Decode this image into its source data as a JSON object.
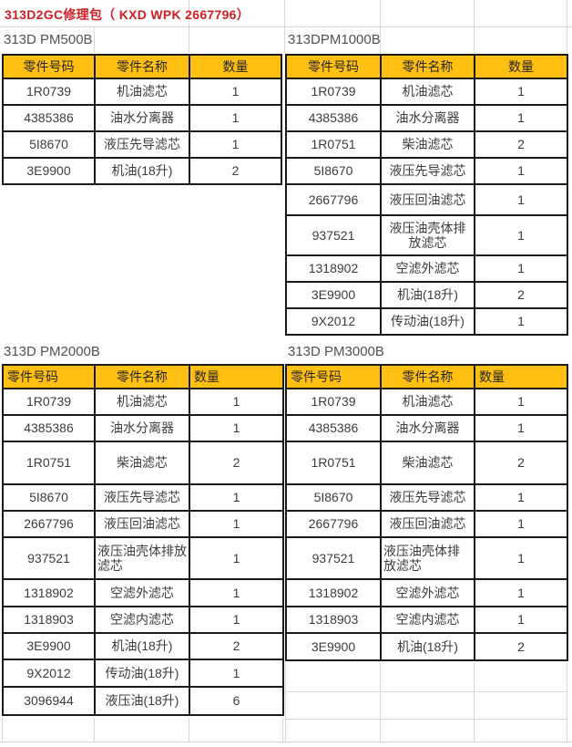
{
  "title": "313D2GC修理包（ KXD WPK 2667796）",
  "colors": {
    "title_red": "#cb2026",
    "header_yellow": "#ffc012",
    "cell_border": "#1a1a1a",
    "label_gray": "#525252"
  },
  "tables": [
    {
      "label": "313D PM500B",
      "headers": [
        "零件号码",
        "零件名称",
        "数量"
      ],
      "rows": [
        [
          "1R0739",
          "机油滤芯",
          "1"
        ],
        [
          "4385386",
          "油水分离器",
          "1"
        ],
        [
          "5I8670",
          "液压先导滤芯",
          "1"
        ],
        [
          "3E9900",
          "机油(18升)",
          "2"
        ]
      ]
    },
    {
      "label": "313DPM1000B",
      "headers": [
        "零件号码",
        "零件名称",
        "数量"
      ],
      "rows": [
        [
          "1R0739",
          "机油滤芯",
          "1"
        ],
        [
          "4385386",
          "油水分离器",
          "1"
        ],
        [
          "1R0751",
          "柴油滤芯",
          "2"
        ],
        [
          "5I8670",
          "液压先导滤芯",
          "1"
        ],
        [
          "2667796",
          "液压回油滤芯",
          "1"
        ],
        [
          "937521",
          "液压油壳体排放滤芯",
          "1"
        ],
        [
          "1318902",
          "空滤外滤芯",
          "1"
        ],
        [
          "3E9900",
          "机油(18升)",
          "2"
        ],
        [
          "9X2012",
          "传动油(18升)",
          "1"
        ]
      ]
    },
    {
      "label": "313D PM2000B",
      "headers": [
        "零件号码",
        "零件名称",
        "数量"
      ],
      "rows": [
        [
          "1R0739",
          "机油滤芯",
          "1"
        ],
        [
          "4385386",
          "油水分离器",
          "1"
        ],
        [
          "1R0751",
          "柴油滤芯",
          "2"
        ],
        [
          "5I8670",
          "液压先导滤芯",
          "1"
        ],
        [
          "2667796",
          "液压回油滤芯",
          "1"
        ],
        [
          "937521",
          "液压油壳体排放滤芯",
          "1"
        ],
        [
          "1318902",
          "空滤外滤芯",
          "1"
        ],
        [
          "1318903",
          "空滤内滤芯",
          "1"
        ],
        [
          "3E9900",
          "机油(18升)",
          "2"
        ],
        [
          "9X2012",
          "传动油(18升)",
          "1"
        ],
        [
          "3096944",
          "液压油(18升)",
          "6"
        ]
      ]
    },
    {
      "label": "313D PM3000B",
      "headers": [
        "零件号码",
        "零件名称",
        "数量"
      ],
      "rows": [
        [
          "1R0739",
          "机油滤芯",
          "1"
        ],
        [
          "4385386",
          "油水分离器",
          "1"
        ],
        [
          "1R0751",
          "柴油滤芯",
          "2"
        ],
        [
          "5I8670",
          "液压先导滤芯",
          "1"
        ],
        [
          "2667796",
          "液压回油滤芯",
          "1"
        ],
        [
          "937521",
          "液压油壳体排放滤芯",
          "1"
        ],
        [
          "1318902",
          "空滤外滤芯",
          "1"
        ],
        [
          "1318903",
          "空滤内滤芯",
          "1"
        ],
        [
          "3E9900",
          "机油(18升)",
          "2"
        ]
      ]
    }
  ]
}
